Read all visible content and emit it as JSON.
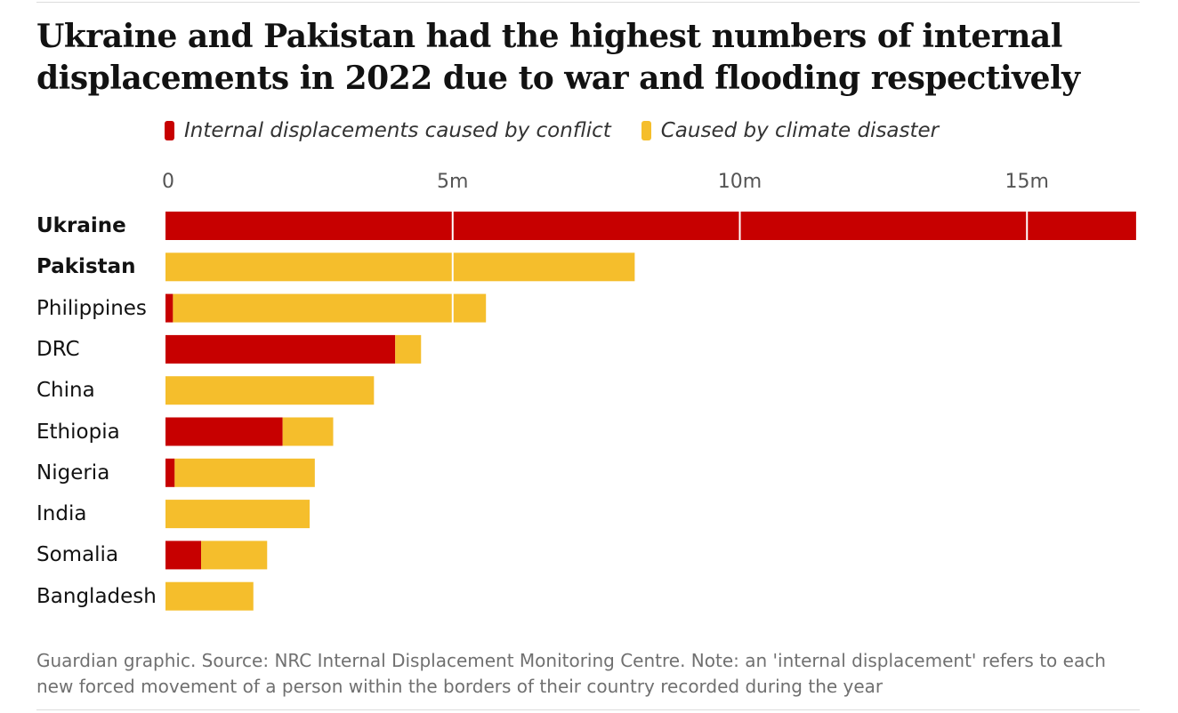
{
  "title": "Ukraine and Pakistan had the highest numbers of internal displacements in 2022 due to war and flooding respectively",
  "colors": {
    "conflict": "#c70000",
    "climate": "#f5be2c"
  },
  "legend": {
    "conflict_label": "Internal displacements caused by conflict",
    "climate_label": "Caused by climate disaster"
  },
  "footer": "Guardian graphic. Source: NRC Internal Displacement Monitoring Centre. Note: an 'internal displacement' refers to each new forced movement of a person within the borders of their country recorded during the year",
  "chart_data": {
    "type": "bar",
    "orientation": "horizontal",
    "stacked": true,
    "categories": [
      "Ukraine",
      "Pakistan",
      "Philippines",
      "DRC",
      "China",
      "Ethiopia",
      "Nigeria",
      "India",
      "Somalia",
      "Bangladesh"
    ],
    "bold_categories": [
      "Ukraine",
      "Pakistan"
    ],
    "series": [
      {
        "name": "Internal displacements caused by conflict",
        "color": "#c70000",
        "values": [
          16.9,
          0,
          0.13,
          4.0,
          0,
          2.04,
          0.16,
          0,
          0.62,
          0
        ]
      },
      {
        "name": "Caused by climate disaster",
        "color": "#f5be2c",
        "values": [
          0,
          8.17,
          5.45,
          0.45,
          3.63,
          0.88,
          2.44,
          2.51,
          1.15,
          1.53
        ]
      }
    ],
    "xlim": [
      0,
      16.9
    ],
    "xticks": [
      0,
      5,
      10,
      15
    ],
    "xtick_labels": [
      "0",
      "5m",
      "10m",
      "15m"
    ],
    "xlabel": "",
    "ylabel": "",
    "grid": true,
    "legend_position": "top"
  }
}
